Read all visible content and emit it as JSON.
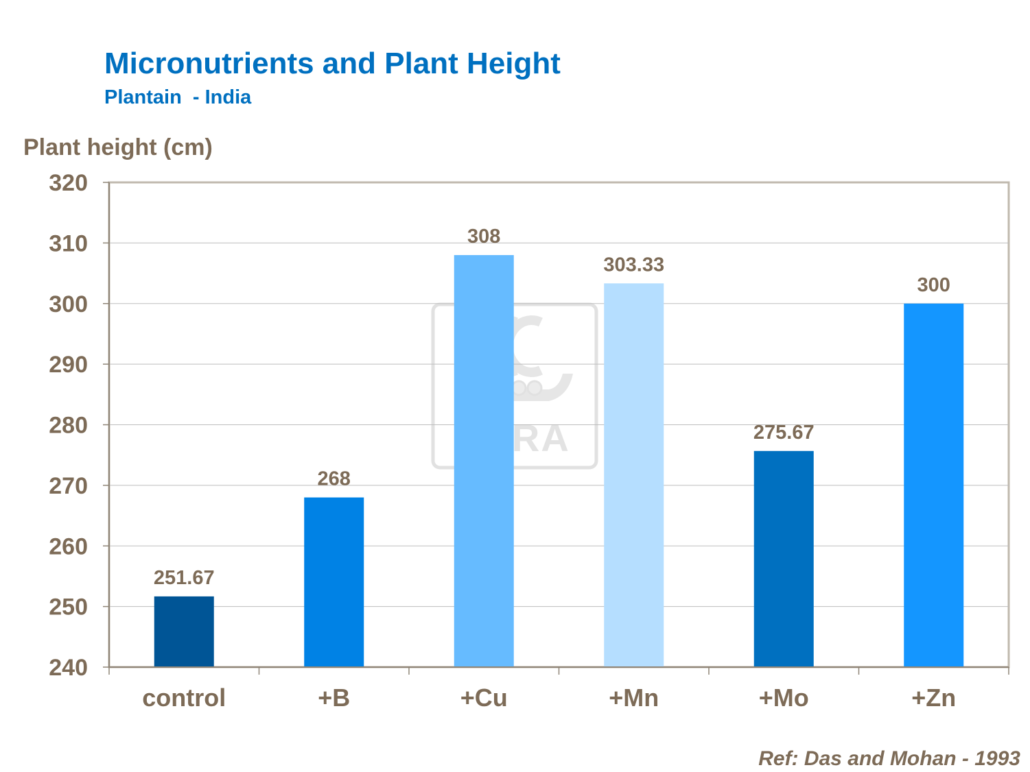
{
  "chart_data": {
    "type": "bar",
    "title": "Micronutrients and Plant Height",
    "subtitle": "Plantain  - India",
    "ylabel": "Plant height (cm)",
    "xlabel": "",
    "categories": [
      "control",
      "+B",
      "+Cu",
      "+Mn",
      "+Mo",
      "+Zn"
    ],
    "values": [
      251.67,
      268,
      308,
      303.33,
      275.67,
      300
    ],
    "value_labels": [
      "251.67",
      "268",
      "308",
      "303.33",
      "275.67",
      "300"
    ],
    "bar_colors": [
      "#005596",
      "#0082e5",
      "#66bbff",
      "#b5deff",
      "#0070c0",
      "#1496ff"
    ],
    "ylim": [
      240,
      320
    ],
    "yticks": [
      240,
      250,
      260,
      270,
      280,
      290,
      300,
      310,
      320
    ],
    "grid": true,
    "legend": "none",
    "source_note": "Ref: Das and Mohan - 1993",
    "watermark": "YARA"
  }
}
